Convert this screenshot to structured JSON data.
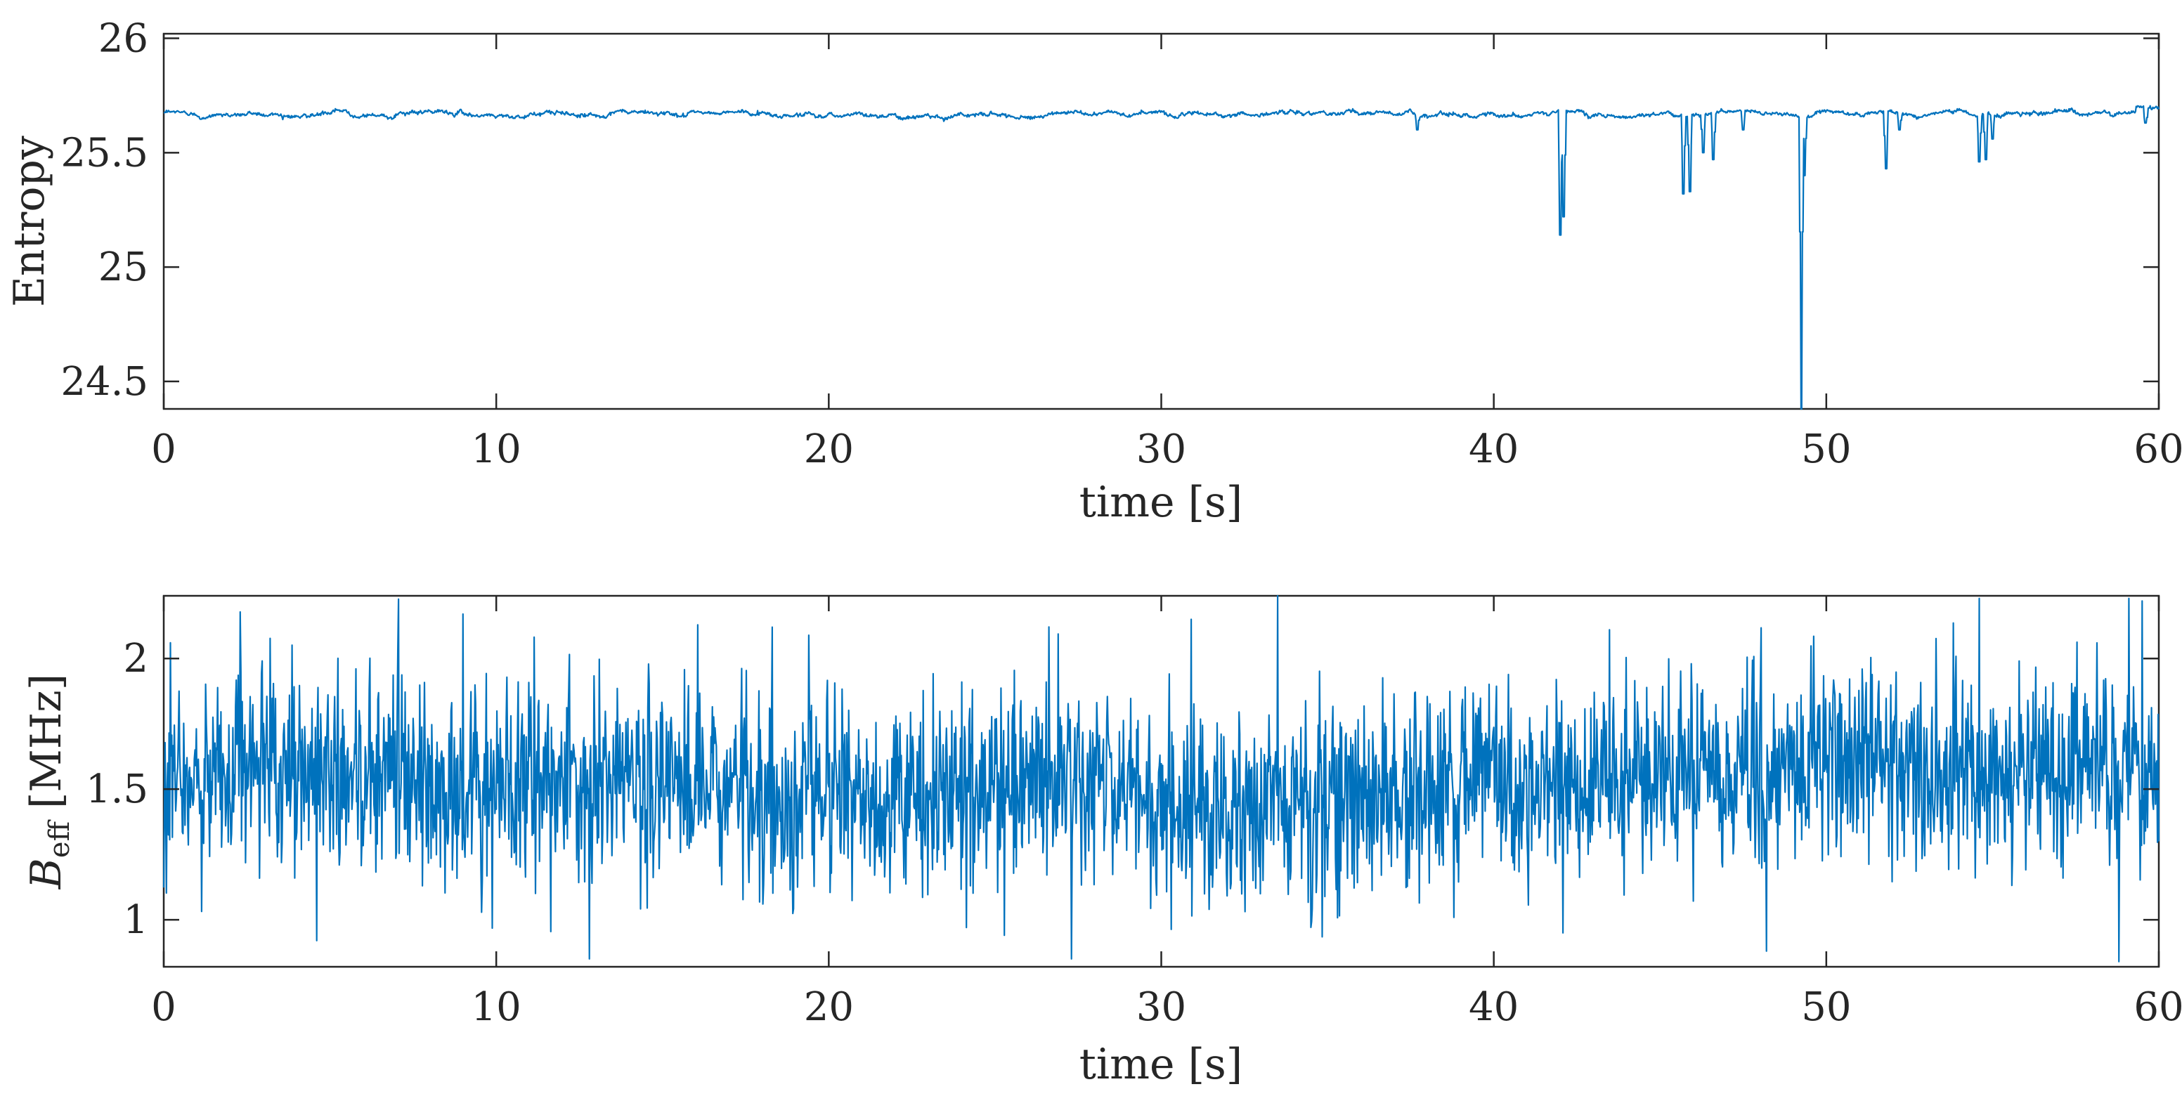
{
  "chart_data": [
    {
      "type": "line",
      "ylabel": "Entropy",
      "xlabel": "time [s]",
      "xlim": [
        0,
        60
      ],
      "ylim": [
        24.38,
        26.02
      ],
      "xticks": [
        0,
        10,
        20,
        30,
        40,
        50,
        60
      ],
      "xtick_labels": [
        "0",
        "10",
        "20",
        "30",
        "40",
        "50",
        "60"
      ],
      "yticks": [
        24.5,
        25,
        25.5,
        26
      ],
      "ytick_labels": [
        "24.5",
        "25",
        "25.5",
        "26"
      ],
      "color": "#0072BD",
      "series": [
        {
          "name": "Entropy",
          "baseline": 25.67,
          "noise": 0.008,
          "dips": [
            {
              "t": 37.7,
              "value": 25.6
            },
            {
              "t": 42.0,
              "value": 25.14
            },
            {
              "t": 42.1,
              "value": 25.22
            },
            {
              "t": 45.7,
              "value": 25.32
            },
            {
              "t": 45.9,
              "value": 25.33
            },
            {
              "t": 46.3,
              "value": 25.5
            },
            {
              "t": 46.6,
              "value": 25.47
            },
            {
              "t": 47.5,
              "value": 25.6
            },
            {
              "t": 49.25,
              "value": 24.38
            },
            {
              "t": 49.35,
              "value": 25.4
            },
            {
              "t": 51.8,
              "value": 25.43
            },
            {
              "t": 52.2,
              "value": 25.6
            },
            {
              "t": 54.6,
              "value": 25.46
            },
            {
              "t": 54.8,
              "value": 25.47
            },
            {
              "t": 55.0,
              "value": 25.56
            },
            {
              "t": 59.6,
              "value": 25.63
            }
          ]
        }
      ]
    },
    {
      "type": "line",
      "ylabel": "B",
      "ylabel_sub": "eff",
      "ylabel_unit": "[MHz]",
      "xlabel": "time [s]",
      "xlim": [
        0,
        60
      ],
      "ylim": [
        0.82,
        2.24
      ],
      "xticks": [
        0,
        10,
        20,
        30,
        40,
        50,
        60
      ],
      "xtick_labels": [
        "0",
        "10",
        "20",
        "30",
        "40",
        "50",
        "60"
      ],
      "yticks": [
        1,
        1.5,
        2
      ],
      "ytick_labels": [
        "1",
        "1.5",
        "2"
      ],
      "color": "#0072BD",
      "series": [
        {
          "name": "B_eff",
          "mean": 1.55,
          "spread": 0.19,
          "min": 0.84,
          "max": 2.24,
          "peaks": [
            {
              "t": 0.2,
              "value": 2.06
            },
            {
              "t": 4.6,
              "value": 0.92
            },
            {
              "t": 9.0,
              "value": 2.17
            },
            {
              "t": 12.8,
              "value": 0.85
            },
            {
              "t": 18.3,
              "value": 2.12
            },
            {
              "t": 27.3,
              "value": 0.85
            },
            {
              "t": 30.9,
              "value": 2.15
            },
            {
              "t": 48.2,
              "value": 0.88
            },
            {
              "t": 54.6,
              "value": 2.23
            },
            {
              "t": 58.8,
              "value": 0.84
            },
            {
              "t": 59.1,
              "value": 2.23
            },
            {
              "t": 59.5,
              "value": 2.22
            }
          ]
        }
      ]
    }
  ]
}
